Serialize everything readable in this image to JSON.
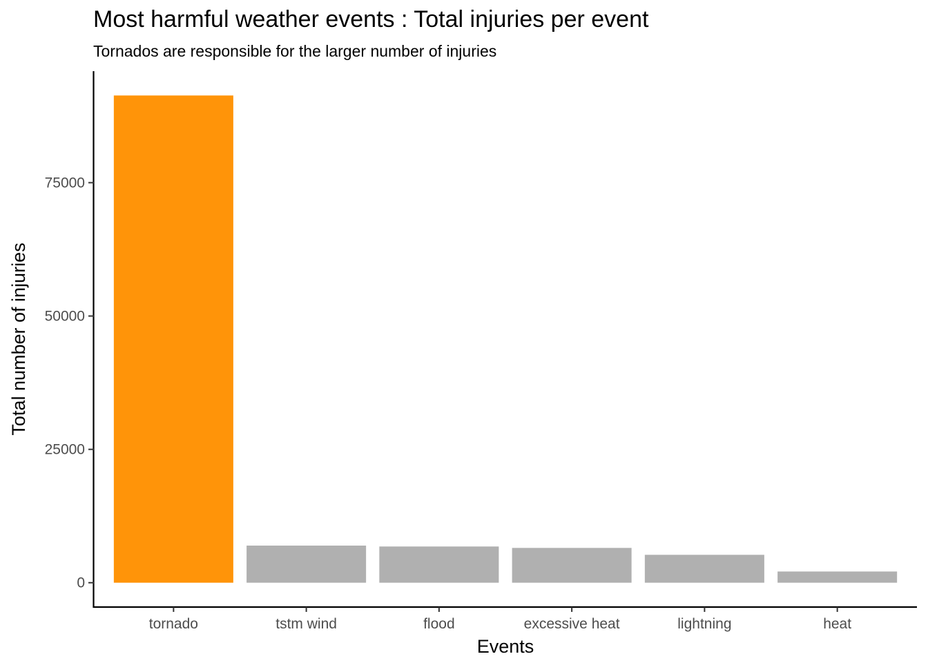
{
  "chart_data": {
    "type": "bar",
    "title": "Most harmful weather events : Total injuries per event",
    "subtitle": "Tornados are responsible for the larger number of injuries",
    "xlabel": "Events",
    "ylabel": "Total number of injuries",
    "categories": [
      "tornado",
      "tstm wind",
      "flood",
      "excessive heat",
      "lightning",
      "heat"
    ],
    "values": [
      91346,
      6957,
      6789,
      6525,
      5230,
      2100
    ],
    "bar_colors": [
      "#FF9409",
      "#B0B0B0",
      "#B0B0B0",
      "#B0B0B0",
      "#B0B0B0",
      "#B0B0B0"
    ],
    "highlight_color": "#FF9409",
    "default_color": "#B0B0B0",
    "yticks": [
      0,
      25000,
      50000,
      75000
    ],
    "ylim": [
      -4567,
      95913
    ],
    "grid": false,
    "legend": "none"
  }
}
